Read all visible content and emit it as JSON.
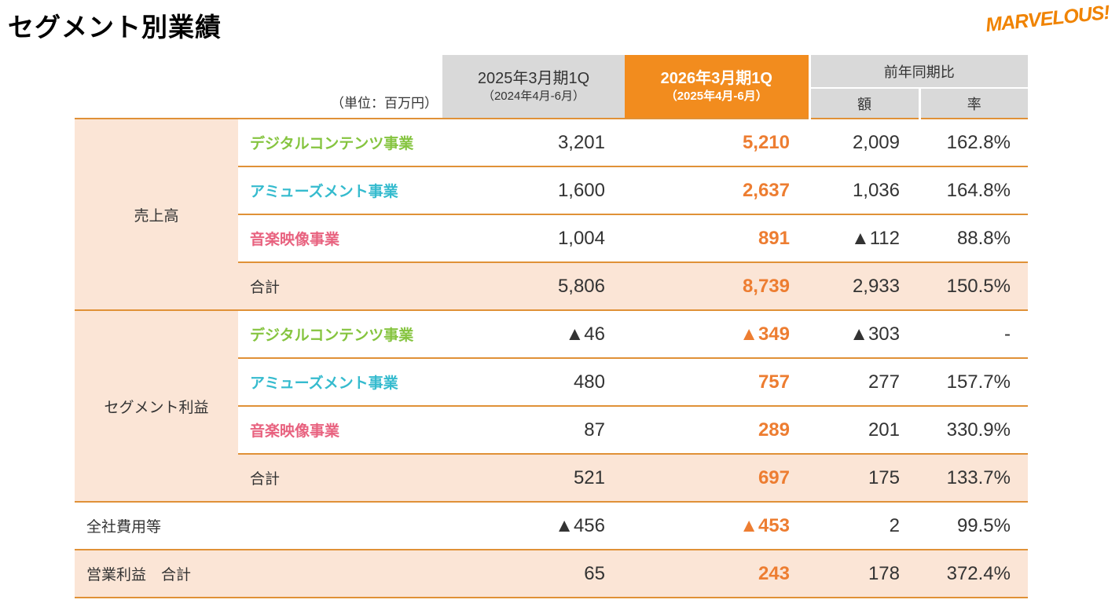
{
  "page": {
    "title": "セグメント別業績",
    "unit_note": "（単位：百万円）",
    "logo_text": "MARVELOUS!"
  },
  "colors": {
    "header_orange": "#F28C1E",
    "number_orange": "#ED7D31",
    "row_peach": "#FBE5D6",
    "border_orange": "#E09137",
    "header_gray": "#D9D9D9",
    "segment_green": "#85C43F",
    "segment_cyan": "#35BBCE",
    "segment_pink": "#E8627F"
  },
  "header": {
    "prev": {
      "line1": "2025年3月期1Q",
      "line2": "（2024年4月-6月）"
    },
    "cur": {
      "line1": "2026年3月期1Q",
      "line2": "（2025年4月-6月）"
    },
    "yoy": {
      "label": "前年同期比",
      "sub_amount": "額",
      "sub_rate": "率"
    }
  },
  "table": {
    "groups": [
      {
        "label": "売上高",
        "rows": [
          {
            "label": "デジタルコンテンツ事業",
            "prev": "3,201",
            "cur": "5,210",
            "diff": "2,009",
            "rate": "162.8%"
          },
          {
            "label": "アミューズメント事業",
            "prev": "1,600",
            "cur": "2,637",
            "diff": "1,036",
            "rate": "164.8%"
          },
          {
            "label": "音楽映像事業",
            "prev": "1,004",
            "cur": "891",
            "diff": "▲112",
            "rate": "88.8%"
          },
          {
            "label": "合計",
            "prev": "5,806",
            "cur": "8,739",
            "diff": "2,933",
            "rate": "150.5%"
          }
        ]
      },
      {
        "label": "セグメント利益",
        "rows": [
          {
            "label": "デジタルコンテンツ事業",
            "prev": "▲46",
            "cur": "▲349",
            "diff": "▲303",
            "rate": "-"
          },
          {
            "label": "アミューズメント事業",
            "prev": "480",
            "cur": "757",
            "diff": "277",
            "rate": "157.7%"
          },
          {
            "label": "音楽映像事業",
            "prev": "87",
            "cur": "289",
            "diff": "201",
            "rate": "330.9%"
          },
          {
            "label": "合計",
            "prev": "521",
            "cur": "697",
            "diff": "175",
            "rate": "133.7%"
          }
        ]
      }
    ],
    "footer": [
      {
        "label": "全社費用等",
        "prev": "▲456",
        "cur": "▲453",
        "diff": "2",
        "rate": "99.5%"
      },
      {
        "label": "営業利益　合計",
        "prev": "65",
        "cur": "243",
        "diff": "178",
        "rate": "372.4%"
      }
    ]
  }
}
